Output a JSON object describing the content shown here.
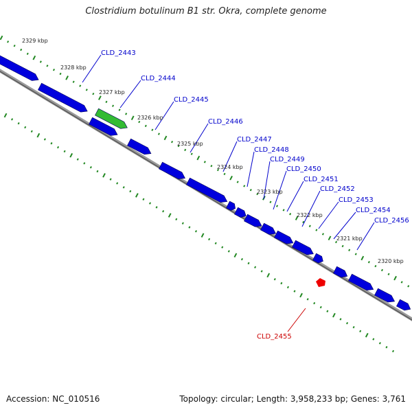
{
  "title": "Clostridium botulinum B1 str. Okra, complete genome",
  "footer": {
    "accession": "Accession: NC_010516",
    "summary": "Topology: circular; Length: 3,958,233 bp; Genes: 3,761"
  },
  "colors": {
    "gene": "#0000dd",
    "gene_highlight_green": "#33bb33",
    "gene_highlight_red": "#ee0000",
    "backbone": "#777777",
    "tick": "#228822",
    "label": "#0000cc",
    "label_highlight": "#cc0000"
  },
  "scale_labels": [
    "2329 kbp",
    "2328 kbp",
    "2327 kbp",
    "2326 kbp",
    "2325 kbp",
    "2324 kbp",
    "2323 kbp",
    "2322 kbp",
    "2321 kbp",
    "2320 kbp"
  ],
  "genes": [
    {
      "label": "CLD_2443"
    },
    {
      "label": "CLD_2444"
    },
    {
      "label": "CLD_2445"
    },
    {
      "label": "CLD_2446"
    },
    {
      "label": "CLD_2447"
    },
    {
      "label": "CLD_2448"
    },
    {
      "label": "CLD_2449"
    },
    {
      "label": "CLD_2450"
    },
    {
      "label": "CLD_2451"
    },
    {
      "label": "CLD_2452"
    },
    {
      "label": "CLD_2453"
    },
    {
      "label": "CLD_2454"
    },
    {
      "label": "CLD_2456"
    },
    {
      "label": "CLD_2455",
      "highlight": true
    }
  ]
}
